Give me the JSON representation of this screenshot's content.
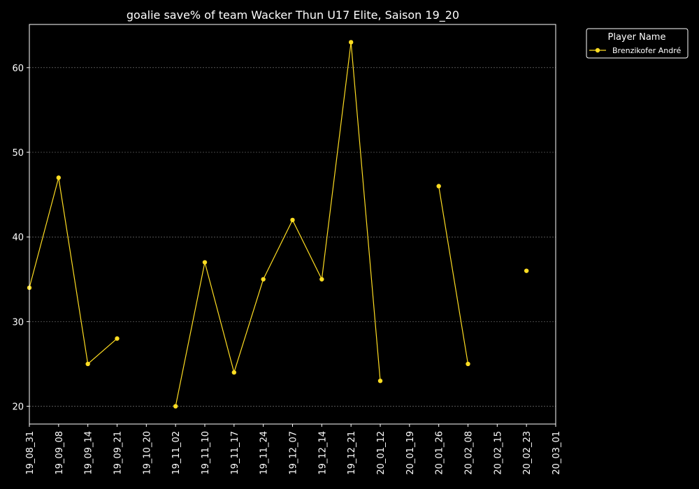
{
  "chart_data": {
    "type": "line",
    "title": "goalie save% of team Wacker Thun U17 Elite, Saison 19_20",
    "xlabel": "",
    "ylabel": "",
    "categories": [
      "19_08_31",
      "19_09_08",
      "19_09_14",
      "19_09_21",
      "19_10_20",
      "19_11_02",
      "19_11_10",
      "19_11_17",
      "19_11_24",
      "19_12_07",
      "19_12_14",
      "19_12_21",
      "20_01_12",
      "20_01_19",
      "20_01_26",
      "20_02_08",
      "20_02_15",
      "20_02_23",
      "20_03_01"
    ],
    "series": [
      {
        "name": "Brenzikofer André",
        "color": "#ffdd22",
        "values": [
          34,
          47,
          25,
          28,
          null,
          20,
          37,
          24,
          35,
          42,
          35,
          63,
          23,
          null,
          46,
          25,
          null,
          36,
          null
        ]
      }
    ],
    "ylim": [
      17.9,
      65.1
    ],
    "yticks": [
      20,
      30,
      40,
      50,
      60
    ],
    "grid": true,
    "legend": {
      "title": "Player Name",
      "position": "outside-top-right"
    },
    "background": "#000000",
    "foreground": "#ffffff"
  }
}
